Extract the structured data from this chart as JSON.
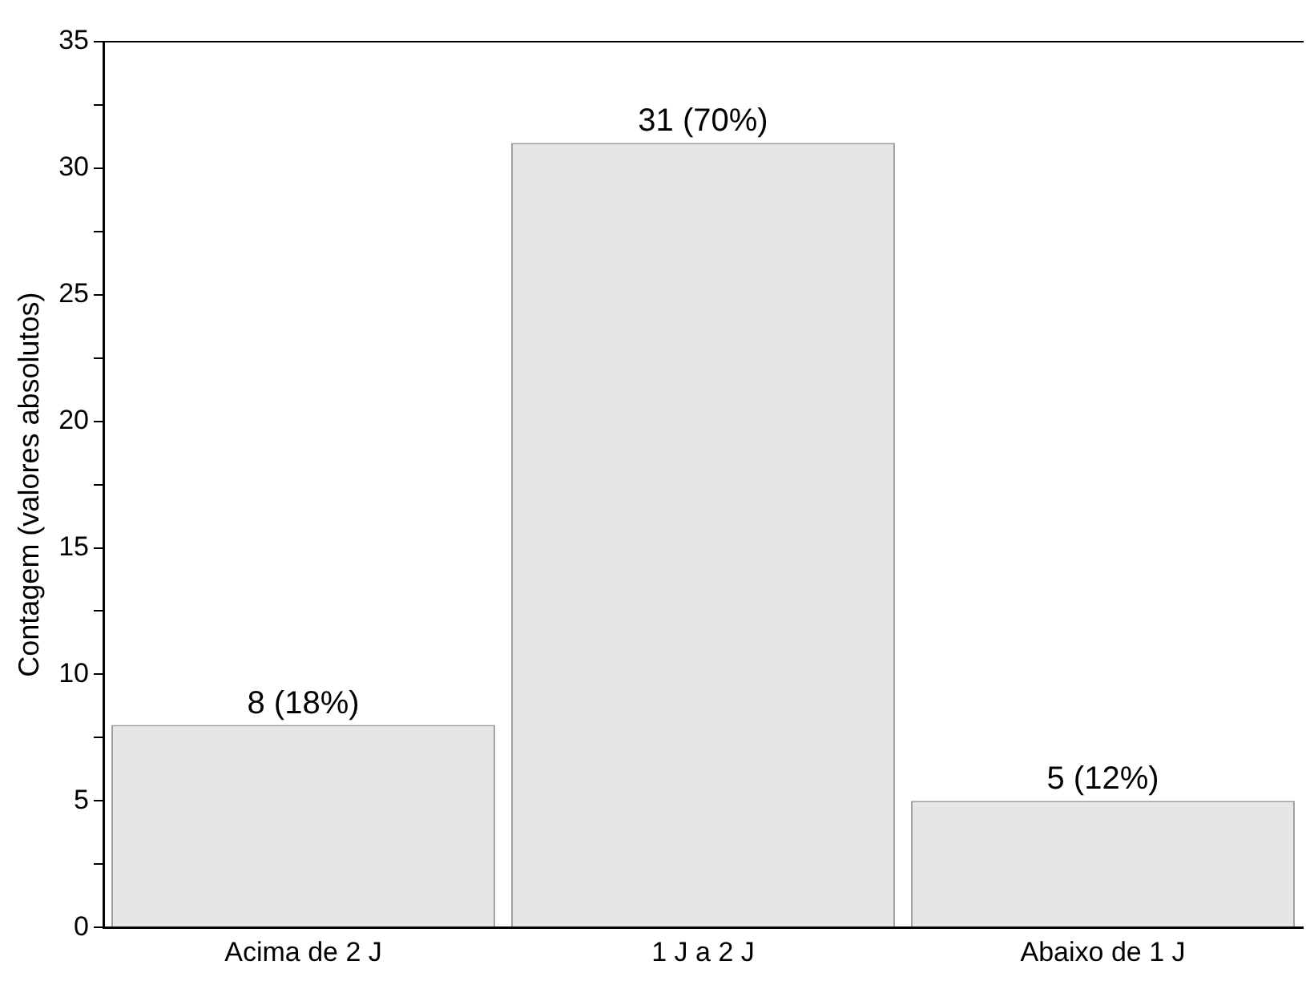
{
  "chart_data": {
    "type": "bar",
    "ylabel": "Contagem (valores absolutos)",
    "categories": [
      "Acima de 2 J",
      "1 J a 2 J",
      "Abaixo de 1 J"
    ],
    "values": [
      8,
      31,
      5
    ],
    "color": "#e6e6e6",
    "value_labels": [
      "8 (18%)",
      "31 (70%)",
      "5 (12%)"
    ],
    "ylim": [
      0,
      35
    ],
    "yticks": [
      0,
      {
        "value": 2.5,
        "label": null
      },
      5,
      {
        "value": 7.5,
        "label": null
      },
      10,
      {
        "value": 12.5,
        "label": null
      },
      15,
      {
        "value": 17.5,
        "label": null
      },
      20,
      {
        "value": 22.5,
        "label": null
      },
      25,
      {
        "value": 27.5,
        "label": null
      },
      30,
      {
        "value": 32.5,
        "label": null
      },
      35
    ],
    "grid": false,
    "legend": false
  }
}
